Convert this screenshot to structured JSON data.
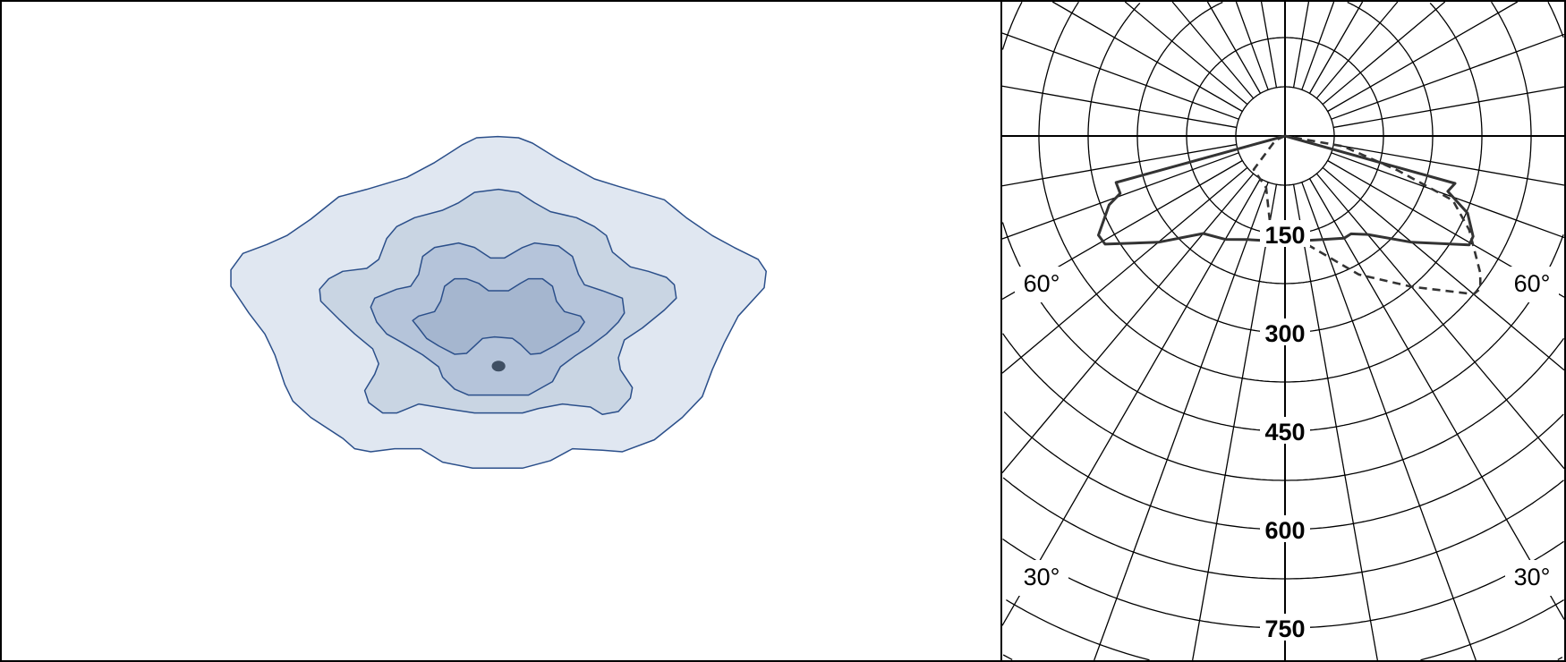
{
  "isolux_panel": {
    "colors": {
      "level_1": "#e0e7f1",
      "level_2": "#c9d5e3",
      "level_3": "#b5c4da",
      "level_4": "#a5b6cf",
      "contour_line": "#2b4f8a",
      "luminaire_marker": "#3f4f63"
    }
  },
  "chart_data": {
    "type": "polar",
    "ring_labels": [
      "150",
      "300",
      "450",
      "600",
      "750"
    ],
    "ring_step": 75,
    "angle_labels": {
      "left_60": "60°",
      "right_60": "60°",
      "left_30": "30°",
      "right_30": "30°"
    },
    "angle_step_deg": 10,
    "angle_reference": "0° = nadir (straight down)",
    "series": [
      {
        "style": "solid",
        "color": "#333333",
        "points": [
          [
            -75,
            0
          ],
          [
            -74.6,
            267
          ],
          [
            -70.8,
            266
          ],
          [
            -68.6,
            288
          ],
          [
            -62,
            322
          ],
          [
            -59,
            320
          ],
          [
            -50,
            252
          ],
          [
            -40,
            194
          ],
          [
            -30,
            182
          ],
          [
            -20,
            168
          ],
          [
            -10,
            162
          ],
          [
            0,
            158
          ],
          [
            10,
            162
          ],
          [
            20,
            168
          ],
          [
            30,
            180
          ],
          [
            34,
            180
          ],
          [
            40,
            196
          ],
          [
            50,
            252
          ],
          [
            59.4,
            326
          ],
          [
            61.9,
            325
          ],
          [
            67.1,
            302
          ],
          [
            71.2,
            262
          ],
          [
            74.4,
            269
          ],
          [
            75,
            0
          ]
        ]
      },
      {
        "style": "dashed",
        "color": "#333333",
        "points": [
          [
            -90,
            0
          ],
          [
            -66,
            16
          ],
          [
            -43,
            70
          ],
          [
            -20,
            84
          ],
          [
            -10,
            133
          ],
          [
            0,
            148
          ],
          [
            12,
            170
          ],
          [
            28,
            239
          ],
          [
            40,
            300
          ],
          [
            50,
            375
          ],
          [
            52,
            378
          ],
          [
            55,
            363
          ],
          [
            63,
            315
          ],
          [
            69,
            274
          ],
          [
            73,
            180
          ],
          [
            80,
            90
          ],
          [
            90,
            0
          ]
        ]
      }
    ]
  }
}
